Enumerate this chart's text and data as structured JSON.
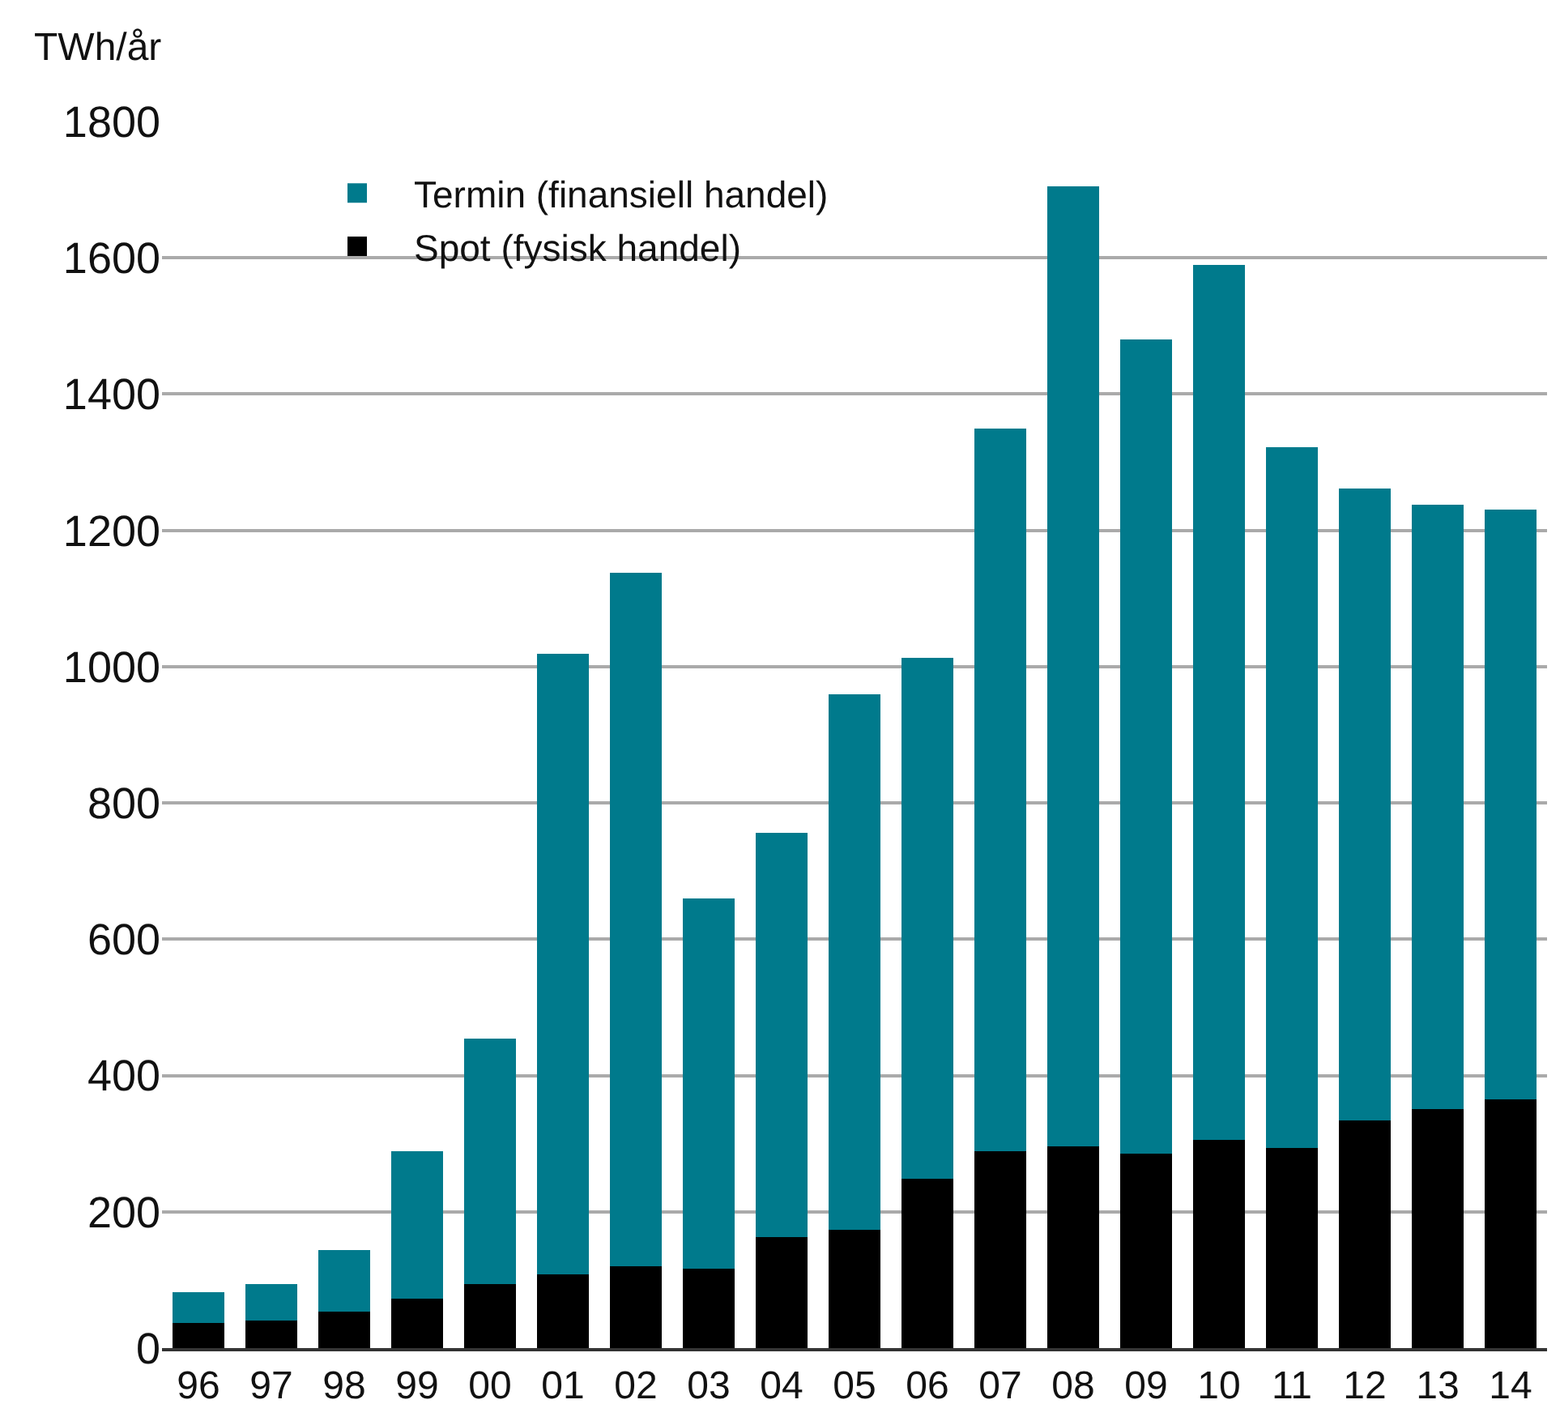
{
  "chart_data": {
    "type": "bar",
    "ylabel": "TWh/år",
    "categories": [
      "96",
      "97",
      "98",
      "99",
      "00",
      "01",
      "02",
      "03",
      "04",
      "05",
      "06",
      "07",
      "08",
      "09",
      "10",
      "11",
      "12",
      "13",
      "14"
    ],
    "stacked": true,
    "series": [
      {
        "name": "Spot (fysisk handel)",
        "color": "#000000",
        "values": [
          37,
          40,
          54,
          72,
          94,
          108,
          120,
          116,
          163,
          174,
          248,
          289,
          296,
          285,
          305,
          294,
          334,
          351,
          365
        ]
      },
      {
        "name": "Termin (finansiell handel)",
        "color": "#007a8c",
        "values": [
          45,
          54,
          90,
          217,
          360,
          911,
          1018,
          544,
          593,
          785,
          765,
          1060,
          1409,
          1195,
          1285,
          1028,
          927,
          887,
          865
        ]
      }
    ],
    "ylim": [
      0,
      1800
    ],
    "yticks": [
      0,
      200,
      400,
      600,
      800,
      1000,
      1200,
      1400,
      1600,
      1800
    ],
    "grid": "y",
    "legend": "top left"
  }
}
